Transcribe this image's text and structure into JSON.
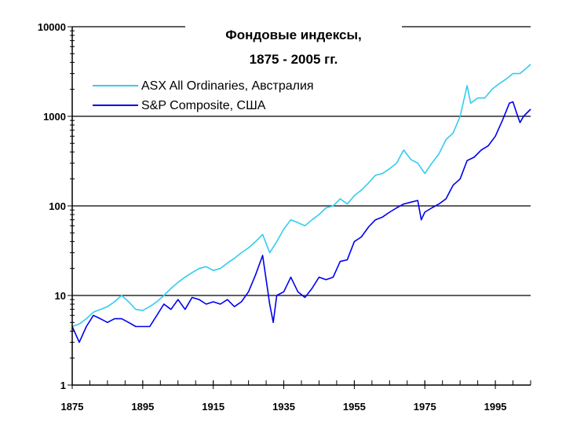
{
  "chart_data": {
    "type": "line",
    "title": "Фондовые индексы,",
    "subtitle": "1875 - 2005 гг.",
    "xlabel": "",
    "ylabel": "",
    "xlim": [
      1875,
      2005
    ],
    "ylim": [
      1,
      10000
    ],
    "y_scale": "log",
    "x_ticks": [
      1875,
      1895,
      1915,
      1935,
      1955,
      1975,
      1995
    ],
    "y_ticks": [
      "1",
      "10",
      "100",
      "1000",
      "10000"
    ],
    "grid": "horizontal at 10, 100, 1000",
    "legend_position": "top-left",
    "series": [
      {
        "name": "ASX All Ordinaries, Австралия",
        "color": "#33ccee",
        "x": [
          1875,
          1877,
          1879,
          1881,
          1883,
          1885,
          1887,
          1889,
          1891,
          1893,
          1895,
          1897,
          1899,
          1901,
          1903,
          1905,
          1907,
          1909,
          1911,
          1913,
          1915,
          1917,
          1919,
          1921,
          1923,
          1925,
          1927,
          1929,
          1931,
          1933,
          1935,
          1937,
          1939,
          1941,
          1943,
          1945,
          1947,
          1949,
          1951,
          1953,
          1955,
          1957,
          1959,
          1961,
          1963,
          1965,
          1967,
          1969,
          1971,
          1973,
          1975,
          1977,
          1979,
          1981,
          1983,
          1985,
          1987,
          1988,
          1990,
          1992,
          1994,
          1996,
          1998,
          2000,
          2002,
          2004,
          2005
        ],
        "values": [
          4.5,
          4.8,
          5.5,
          6.5,
          7.0,
          7.5,
          8.5,
          10.0,
          8.5,
          7.0,
          6.8,
          7.5,
          8.5,
          10.0,
          12.0,
          14.0,
          16.0,
          18.0,
          20.0,
          21.0,
          19.0,
          20.0,
          23.0,
          26.0,
          30.0,
          34.0,
          40.0,
          48.0,
          30.0,
          40.0,
          55.0,
          70.0,
          65.0,
          60.0,
          70.0,
          80.0,
          95.0,
          100.0,
          120.0,
          105.0,
          130.0,
          150.0,
          180.0,
          220.0,
          230.0,
          260.0,
          300.0,
          420.0,
          330.0,
          300.0,
          230.0,
          300.0,
          380.0,
          550.0,
          650.0,
          1000.0,
          2200.0,
          1400.0,
          1600.0,
          1600.0,
          2000.0,
          2300.0,
          2600.0,
          3000.0,
          3000.0,
          3500.0,
          3800.0
        ]
      },
      {
        "name": "S&P Composite, США",
        "color": "#0000ee",
        "x": [
          1875,
          1877,
          1879,
          1881,
          1883,
          1885,
          1887,
          1889,
          1891,
          1893,
          1895,
          1897,
          1899,
          1901,
          1903,
          1905,
          1907,
          1909,
          1911,
          1913,
          1915,
          1917,
          1919,
          1921,
          1923,
          1925,
          1927,
          1929,
          1931,
          1932,
          1933,
          1935,
          1937,
          1939,
          1941,
          1943,
          1945,
          1947,
          1949,
          1951,
          1953,
          1955,
          1957,
          1959,
          1961,
          1963,
          1965,
          1967,
          1969,
          1971,
          1973,
          1974,
          1975,
          1977,
          1979,
          1981,
          1983,
          1985,
          1987,
          1989,
          1991,
          1993,
          1995,
          1997,
          1999,
          2000,
          2001,
          2002,
          2003,
          2005
        ],
        "values": [
          4.5,
          3.0,
          4.5,
          6.0,
          5.5,
          5.0,
          5.5,
          5.5,
          5.0,
          4.5,
          4.5,
          4.5,
          6.0,
          8.0,
          7.0,
          9.0,
          7.0,
          9.5,
          9.0,
          8.0,
          8.5,
          8.0,
          9.0,
          7.5,
          8.5,
          11.0,
          17.0,
          28.0,
          8.0,
          5.0,
          10.0,
          11.0,
          16.0,
          11.0,
          9.5,
          12.0,
          16.0,
          15.0,
          16.0,
          24.0,
          25.0,
          40.0,
          45.0,
          58.0,
          70.0,
          75.0,
          85.0,
          95.0,
          105.0,
          110.0,
          115.0,
          70.0,
          85.0,
          95.0,
          105.0,
          120.0,
          170.0,
          200.0,
          320.0,
          350.0,
          420.0,
          470.0,
          600.0,
          900.0,
          1400.0,
          1450.0,
          1100.0,
          850.0,
          1000.0,
          1200.0
        ]
      }
    ]
  }
}
